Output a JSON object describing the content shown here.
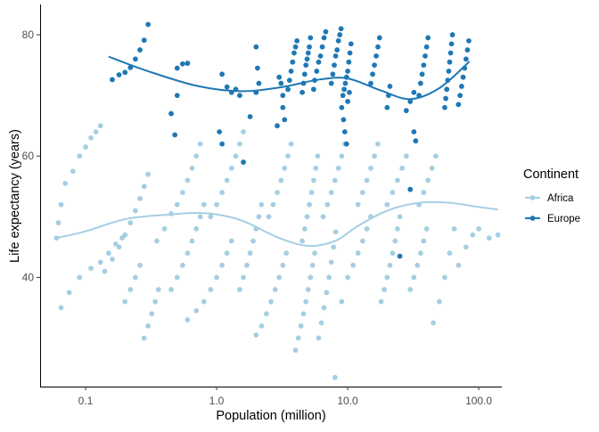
{
  "colors": {
    "Africa": "#a6cee3",
    "Europe": "#1f78b4",
    "axis": "#000000",
    "tick_text": "#4d4d4d"
  },
  "chart_data": {
    "type": "scatter",
    "title": "",
    "xlabel": "Population (million)",
    "ylabel": "Life expectancy (years)",
    "x_scale": "log10",
    "xlim": [
      0.045,
      150
    ],
    "ylim": [
      22,
      85
    ],
    "x_ticks": [
      0.1,
      1.0,
      10.0,
      100.0
    ],
    "x_tick_labels": [
      "0.1",
      "1.0",
      "10.0",
      "100.0"
    ],
    "y_ticks": [
      40,
      60,
      80
    ],
    "y_tick_labels": [
      "40",
      "60",
      "80"
    ],
    "grid": false,
    "legend": {
      "title": "Continent",
      "placement": "right",
      "entries": [
        "Africa",
        "Europe"
      ]
    },
    "series": [
      {
        "name": "Europe",
        "color": "#1f78b4",
        "points": [
          [
            0.16,
            72.6
          ],
          [
            0.18,
            73.4
          ],
          [
            0.2,
            73.8
          ],
          [
            0.22,
            74.6
          ],
          [
            0.24,
            76.0
          ],
          [
            0.26,
            77.5
          ],
          [
            0.28,
            79.1
          ],
          [
            0.3,
            81.7
          ],
          [
            0.5,
            74.5
          ],
          [
            0.55,
            75.2
          ],
          [
            0.6,
            75.3
          ],
          [
            0.5,
            70.0
          ],
          [
            0.45,
            67.0
          ],
          [
            0.48,
            63.5
          ],
          [
            1.1,
            73.5
          ],
          [
            1.2,
            71.4
          ],
          [
            1.3,
            70.5
          ],
          [
            1.4,
            71.0
          ],
          [
            1.5,
            70.0
          ],
          [
            1.1,
            62.0
          ],
          [
            1.05,
            64.0
          ],
          [
            2.0,
            78.0
          ],
          [
            2.05,
            74.5
          ],
          [
            2.1,
            72.0
          ],
          [
            2.0,
            70.5
          ],
          [
            1.8,
            66.5
          ],
          [
            1.6,
            59.0
          ],
          [
            3.0,
            73.0
          ],
          [
            3.1,
            72.0
          ],
          [
            3.2,
            70.0
          ],
          [
            3.2,
            68.0
          ],
          [
            3.3,
            66.0
          ],
          [
            2.9,
            65.0
          ],
          [
            3.5,
            71.0
          ],
          [
            3.6,
            72.5
          ],
          [
            3.7,
            74.0
          ],
          [
            3.8,
            75.5
          ],
          [
            3.9,
            77.0
          ],
          [
            4.0,
            78.0
          ],
          [
            4.1,
            79.0
          ],
          [
            4.5,
            70.5
          ],
          [
            4.6,
            72.0
          ],
          [
            4.7,
            73.5
          ],
          [
            4.8,
            75.0
          ],
          [
            4.9,
            76.0
          ],
          [
            5.0,
            77.0
          ],
          [
            5.1,
            78.0
          ],
          [
            5.2,
            79.5
          ],
          [
            5.5,
            71.0
          ],
          [
            5.6,
            72.5
          ],
          [
            5.8,
            74.0
          ],
          [
            6.0,
            75.5
          ],
          [
            6.2,
            76.5
          ],
          [
            6.4,
            78.0
          ],
          [
            6.6,
            79.5
          ],
          [
            6.8,
            80.5
          ],
          [
            7.5,
            72.0
          ],
          [
            7.7,
            73.5
          ],
          [
            7.9,
            75.0
          ],
          [
            8.1,
            76.5
          ],
          [
            8.3,
            77.5
          ],
          [
            8.5,
            79.0
          ],
          [
            8.7,
            80.0
          ],
          [
            8.9,
            81.0
          ],
          [
            9.2,
            70.0
          ],
          [
            9.4,
            71.0
          ],
          [
            9.6,
            72.0
          ],
          [
            9.8,
            73.0
          ],
          [
            10.0,
            74.0
          ],
          [
            10.2,
            75.5
          ],
          [
            10.4,
            77.0
          ],
          [
            10.6,
            78.5
          ],
          [
            9.0,
            68.0
          ],
          [
            9.3,
            66.0
          ],
          [
            9.5,
            64.0
          ],
          [
            9.8,
            62.0
          ],
          [
            10.0,
            69.0
          ],
          [
            10.3,
            70.5
          ],
          [
            15.0,
            72.0
          ],
          [
            15.5,
            73.5
          ],
          [
            16.0,
            75.0
          ],
          [
            16.5,
            76.5
          ],
          [
            17.0,
            78.0
          ],
          [
            17.5,
            79.5
          ],
          [
            20.0,
            68.0
          ],
          [
            20.5,
            70.0
          ],
          [
            21.0,
            71.5
          ],
          [
            35.0,
            70.0
          ],
          [
            36.0,
            72.0
          ],
          [
            37.0,
            73.5
          ],
          [
            38.0,
            75.0
          ],
          [
            39.0,
            76.5
          ],
          [
            40.0,
            78.0
          ],
          [
            41.0,
            79.5
          ],
          [
            30.0,
            69.0
          ],
          [
            32.0,
            70.5
          ],
          [
            28.0,
            67.5
          ],
          [
            33.0,
            62.5
          ],
          [
            32.0,
            64.0
          ],
          [
            30.0,
            54.5
          ],
          [
            25.0,
            43.5
          ],
          [
            55.0,
            68.0
          ],
          [
            56.0,
            69.5
          ],
          [
            57.0,
            71.0
          ],
          [
            58.0,
            72.5
          ],
          [
            59.0,
            74.0
          ],
          [
            60.0,
            75.5
          ],
          [
            61.0,
            77.0
          ],
          [
            62.0,
            78.5
          ],
          [
            63.0,
            80.0
          ],
          [
            70.0,
            68.5
          ],
          [
            72.0,
            70.0
          ],
          [
            74.0,
            71.5
          ],
          [
            76.0,
            73.0
          ],
          [
            78.0,
            74.5
          ],
          [
            80.0,
            76.0
          ],
          [
            82.0,
            77.5
          ],
          [
            84.0,
            79.0
          ]
        ],
        "trend": [
          [
            0.15,
            76.4
          ],
          [
            0.3,
            74.0
          ],
          [
            0.7,
            71.6
          ],
          [
            1.5,
            70.7
          ],
          [
            3.0,
            71.3
          ],
          [
            6.0,
            72.6
          ],
          [
            10.0,
            72.8
          ],
          [
            18.0,
            70.8
          ],
          [
            30.0,
            69.4
          ],
          [
            50.0,
            71.2
          ],
          [
            85.0,
            75.6
          ]
        ]
      },
      {
        "name": "Africa",
        "color": "#a6cee3",
        "points": [
          [
            0.06,
            46.5
          ],
          [
            0.062,
            49.0
          ],
          [
            0.065,
            52.0
          ],
          [
            0.07,
            55.5
          ],
          [
            0.08,
            57.5
          ],
          [
            0.09,
            60.0
          ],
          [
            0.1,
            61.5
          ],
          [
            0.11,
            63.0
          ],
          [
            0.12,
            64.0
          ],
          [
            0.13,
            65.0
          ],
          [
            0.065,
            35.0
          ],
          [
            0.075,
            37.5
          ],
          [
            0.09,
            40.0
          ],
          [
            0.11,
            41.5
          ],
          [
            0.13,
            42.5
          ],
          [
            0.15,
            44.0
          ],
          [
            0.17,
            45.5
          ],
          [
            0.19,
            46.5
          ],
          [
            0.14,
            41.0
          ],
          [
            0.16,
            43.0
          ],
          [
            0.18,
            45.0
          ],
          [
            0.2,
            47.0
          ],
          [
            0.22,
            49.0
          ],
          [
            0.24,
            51.0
          ],
          [
            0.26,
            53.0
          ],
          [
            0.28,
            55.0
          ],
          [
            0.3,
            57.0
          ],
          [
            0.2,
            36.0
          ],
          [
            0.22,
            38.0
          ],
          [
            0.24,
            40.0
          ],
          [
            0.26,
            42.0
          ],
          [
            0.28,
            30.0
          ],
          [
            0.3,
            32.0
          ],
          [
            0.32,
            34.0
          ],
          [
            0.34,
            36.0
          ],
          [
            0.36,
            38.0
          ],
          [
            0.35,
            46.0
          ],
          [
            0.4,
            48.0
          ],
          [
            0.45,
            50.5
          ],
          [
            0.5,
            52.0
          ],
          [
            0.55,
            54.0
          ],
          [
            0.6,
            56.0
          ],
          [
            0.65,
            58.0
          ],
          [
            0.7,
            60.0
          ],
          [
            0.75,
            62.0
          ],
          [
            0.45,
            38.0
          ],
          [
            0.5,
            40.0
          ],
          [
            0.55,
            42.0
          ],
          [
            0.6,
            44.0
          ],
          [
            0.65,
            46.0
          ],
          [
            0.7,
            48.0
          ],
          [
            0.75,
            50.0
          ],
          [
            0.8,
            52.0
          ],
          [
            0.6,
            33.0
          ],
          [
            0.7,
            34.5
          ],
          [
            0.8,
            36.0
          ],
          [
            0.9,
            38.0
          ],
          [
            1.0,
            40.0
          ],
          [
            1.1,
            42.0
          ],
          [
            1.2,
            44.0
          ],
          [
            1.3,
            46.0
          ],
          [
            0.9,
            50.0
          ],
          [
            1.0,
            52.0
          ],
          [
            1.1,
            54.0
          ],
          [
            1.2,
            56.0
          ],
          [
            1.3,
            58.0
          ],
          [
            1.4,
            60.0
          ],
          [
            1.5,
            62.0
          ],
          [
            1.6,
            64.0
          ],
          [
            1.5,
            38.0
          ],
          [
            1.6,
            40.0
          ],
          [
            1.7,
            42.0
          ],
          [
            1.8,
            44.0
          ],
          [
            1.9,
            46.0
          ],
          [
            2.0,
            48.0
          ],
          [
            2.1,
            50.0
          ],
          [
            2.2,
            52.0
          ],
          [
            2.0,
            30.5
          ],
          [
            2.2,
            32.0
          ],
          [
            2.4,
            34.0
          ],
          [
            2.6,
            36.0
          ],
          [
            2.8,
            38.0
          ],
          [
            3.0,
            40.0
          ],
          [
            3.2,
            42.0
          ],
          [
            3.4,
            44.0
          ],
          [
            2.5,
            50.0
          ],
          [
            2.7,
            52.0
          ],
          [
            2.9,
            54.0
          ],
          [
            3.1,
            56.0
          ],
          [
            3.3,
            58.0
          ],
          [
            3.5,
            60.0
          ],
          [
            3.7,
            62.0
          ],
          [
            4.0,
            28.0
          ],
          [
            4.2,
            30.0
          ],
          [
            4.4,
            32.0
          ],
          [
            4.6,
            34.0
          ],
          [
            4.8,
            36.0
          ],
          [
            5.0,
            38.0
          ],
          [
            5.2,
            40.0
          ],
          [
            5.4,
            42.0
          ],
          [
            5.6,
            44.0
          ],
          [
            4.5,
            46.0
          ],
          [
            4.7,
            48.0
          ],
          [
            4.9,
            50.0
          ],
          [
            5.1,
            52.0
          ],
          [
            5.3,
            54.0
          ],
          [
            5.5,
            56.0
          ],
          [
            5.7,
            58.0
          ],
          [
            5.9,
            60.0
          ],
          [
            6.0,
            30.0
          ],
          [
            6.3,
            32.5
          ],
          [
            6.6,
            35.0
          ],
          [
            6.9,
            37.5
          ],
          [
            7.2,
            40.0
          ],
          [
            7.5,
            42.5
          ],
          [
            7.8,
            45.0
          ],
          [
            8.1,
            47.5
          ],
          [
            6.5,
            50.0
          ],
          [
            7.0,
            52.0
          ],
          [
            7.5,
            54.0
          ],
          [
            8.0,
            56.0
          ],
          [
            8.5,
            58.0
          ],
          [
            9.0,
            60.0
          ],
          [
            9.5,
            62.0
          ],
          [
            8.0,
            23.5
          ],
          [
            9.0,
            36.0
          ],
          [
            10.0,
            40.0
          ],
          [
            11.0,
            42.0
          ],
          [
            12.0,
            44.0
          ],
          [
            13.0,
            46.0
          ],
          [
            14.0,
            48.0
          ],
          [
            15.0,
            50.0
          ],
          [
            12.0,
            52.0
          ],
          [
            13.0,
            54.0
          ],
          [
            14.0,
            56.0
          ],
          [
            15.0,
            58.0
          ],
          [
            16.0,
            60.0
          ],
          [
            17.0,
            62.0
          ],
          [
            18.0,
            36.0
          ],
          [
            19.0,
            38.0
          ],
          [
            20.0,
            40.0
          ],
          [
            21.0,
            42.0
          ],
          [
            22.0,
            44.0
          ],
          [
            23.0,
            46.0
          ],
          [
            24.0,
            48.0
          ],
          [
            25.0,
            50.0
          ],
          [
            20.0,
            52.0
          ],
          [
            22.0,
            54.0
          ],
          [
            24.0,
            56.0
          ],
          [
            26.0,
            58.0
          ],
          [
            28.0,
            60.0
          ],
          [
            30.0,
            38.0
          ],
          [
            32.0,
            40.0
          ],
          [
            34.0,
            42.0
          ],
          [
            36.0,
            44.0
          ],
          [
            38.0,
            46.0
          ],
          [
            40.0,
            48.0
          ],
          [
            35.0,
            52.0
          ],
          [
            38.0,
            54.0
          ],
          [
            41.0,
            56.0
          ],
          [
            44.0,
            58.0
          ],
          [
            47.0,
            60.0
          ],
          [
            45.0,
            32.5
          ],
          [
            50.0,
            36.0
          ],
          [
            55.0,
            40.0
          ],
          [
            60.0,
            44.0
          ],
          [
            65.0,
            48.0
          ],
          [
            70.0,
            42.0
          ],
          [
            80.0,
            45.0
          ],
          [
            90.0,
            47.0
          ],
          [
            100.0,
            48.0
          ],
          [
            120.0,
            46.5
          ],
          [
            140.0,
            47.0
          ]
        ],
        "trend": [
          [
            0.06,
            46.5
          ],
          [
            0.1,
            47.6
          ],
          [
            0.2,
            49.6
          ],
          [
            0.4,
            50.3
          ],
          [
            0.8,
            50.6
          ],
          [
            1.5,
            49.5
          ],
          [
            3.0,
            46.5
          ],
          [
            5.0,
            45.2
          ],
          [
            8.0,
            46.0
          ],
          [
            12.0,
            48.5
          ],
          [
            20.0,
            51.0
          ],
          [
            35.0,
            52.3
          ],
          [
            60.0,
            52.3
          ],
          [
            100.0,
            51.6
          ],
          [
            140.0,
            51.2
          ]
        ]
      }
    ]
  }
}
